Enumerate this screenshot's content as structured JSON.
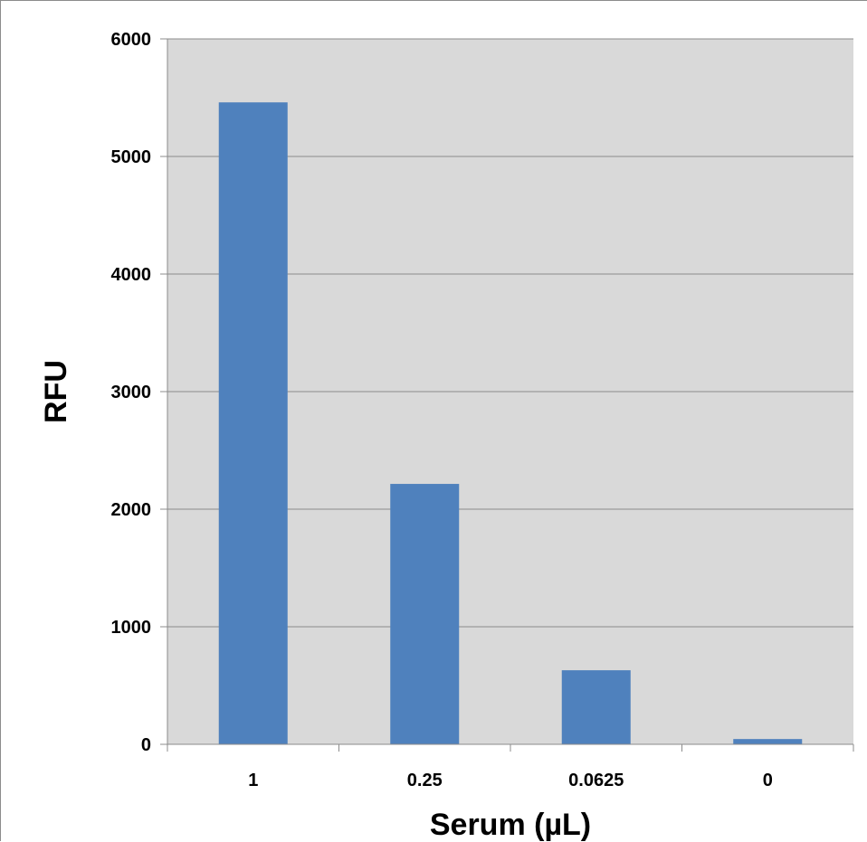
{
  "chart_data": {
    "type": "bar",
    "title": "",
    "xlabel": "Serum (µL)",
    "ylabel": "RFU",
    "categories": [
      "1",
      "0.25",
      "0.0625",
      "0"
    ],
    "values": [
      5460,
      2215,
      630,
      45
    ],
    "ylim": [
      0,
      6000
    ],
    "yticks": [
      0,
      1000,
      2000,
      3000,
      4000,
      5000,
      6000
    ],
    "ytick_labels": [
      "0",
      "1000",
      "2000",
      "3000",
      "4000",
      "5000",
      "6000"
    ],
    "grid": true,
    "legend": "none",
    "colors": {
      "bar": "#4f81bd",
      "plot_background": "#d9d9d9",
      "gridline": "#8c8c8c",
      "axis": "#8c8c8c"
    }
  }
}
